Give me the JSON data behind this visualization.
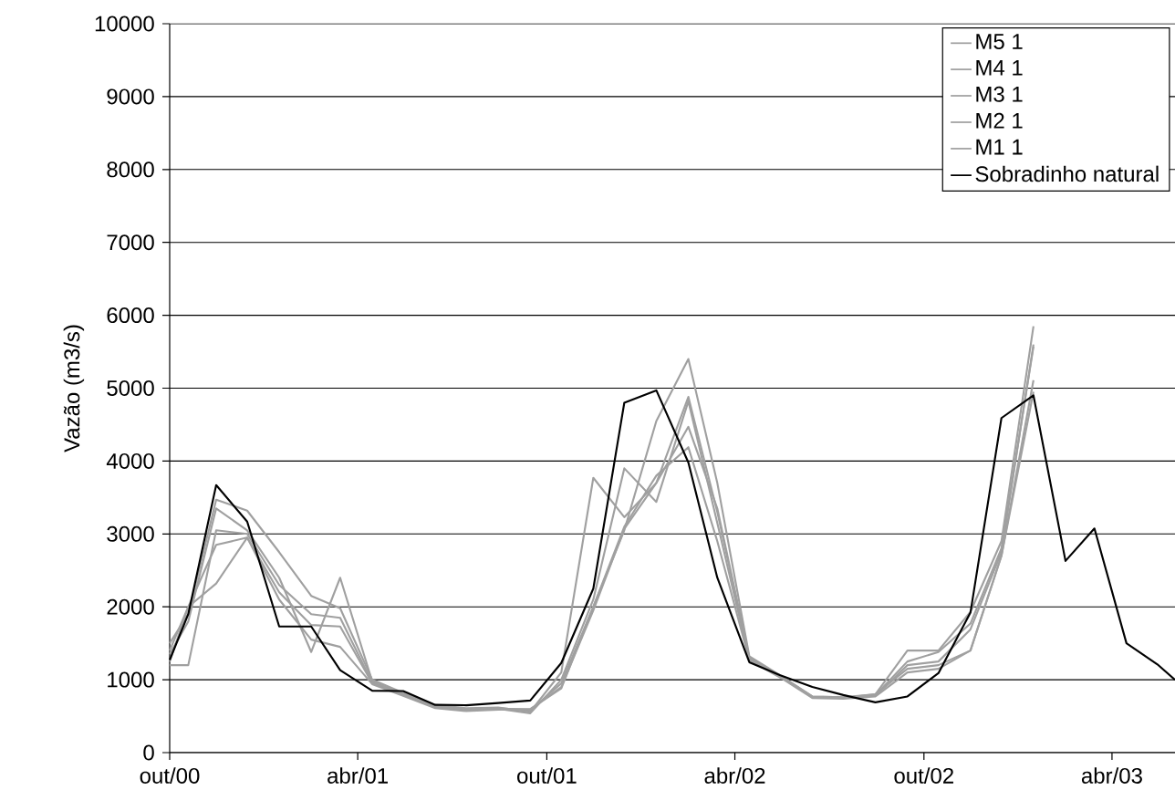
{
  "chart_data": {
    "type": "line",
    "ylabel": "Vazão (m3/s)",
    "x": [
      "2000-10-01",
      "2000-10-19",
      "2000-11-15",
      "2000-12-15",
      "2001-01-15",
      "2001-02-15",
      "2001-03-15",
      "2001-04-15",
      "2001-05-15",
      "2001-06-15",
      "2001-07-15",
      "2001-08-15",
      "2001-09-15",
      "2001-10-15",
      "2001-11-15",
      "2001-12-15",
      "2002-01-15",
      "2002-02-15",
      "2002-03-15",
      "2002-04-15",
      "2002-05-15",
      "2002-06-15",
      "2002-07-15",
      "2002-08-15",
      "2002-09-15",
      "2002-10-15",
      "2002-11-15",
      "2002-12-15",
      "2003-01-15",
      "2003-02-15",
      "2003-03-15",
      "2003-04-15",
      "2003-05-15",
      "2003-06-01"
    ],
    "xlim": [
      "2000-10-01",
      "2003-06-01"
    ],
    "xticks": [
      {
        "value": "2000-10-01",
        "label": "out/00"
      },
      {
        "value": "2001-04-01",
        "label": "abr/01"
      },
      {
        "value": "2001-10-01",
        "label": "out/01"
      },
      {
        "value": "2002-04-01",
        "label": "abr/02"
      },
      {
        "value": "2002-10-01",
        "label": "out/02"
      },
      {
        "value": "2003-04-01",
        "label": "abr/03"
      }
    ],
    "ylim": [
      0,
      10000
    ],
    "yticks": [
      0,
      1000,
      2000,
      3000,
      4000,
      5000,
      6000,
      7000,
      8000,
      9000,
      10000
    ],
    "grid": "y",
    "legend": "top right",
    "marker": "none",
    "line_style": "solid",
    "series": [
      {
        "name": "M5 1",
        "color": "#a0a0a0",
        "values": [
          1500,
          1900,
          3470,
          3320,
          2750,
          2150,
          1980,
          1000,
          820,
          650,
          610,
          620,
          560,
          1100,
          3770,
          3230,
          3700,
          4880,
          3300,
          1300,
          1050,
          770,
          760,
          800,
          1400,
          1400,
          1930,
          2900,
          5850,
          null,
          null,
          null,
          null,
          null
        ]
      },
      {
        "name": "M4 1",
        "color": "#a0a0a0",
        "values": [
          1350,
          1800,
          3350,
          3050,
          2400,
          1380,
          2400,
          980,
          800,
          640,
          600,
          600,
          540,
          1000,
          2100,
          3900,
          3440,
          4820,
          3150,
          1280,
          1040,
          760,
          750,
          790,
          1250,
          1380,
          1770,
          2800,
          5570,
          null,
          null,
          null,
          null,
          null
        ]
      },
      {
        "name": "M3 1",
        "color": "#a0a0a0",
        "values": [
          1200,
          1200,
          3050,
          3000,
          2300,
          1900,
          1850,
          960,
          790,
          630,
          590,
          610,
          580,
          950,
          2000,
          3050,
          4550,
          5400,
          3700,
          1320,
          1060,
          770,
          760,
          780,
          1200,
          1250,
          1690,
          2750,
          5600,
          null,
          null,
          null,
          null,
          null
        ]
      },
      {
        "name": "M2 1",
        "color": "#a0a0a0",
        "values": [
          1250,
          2000,
          2850,
          2950,
          2200,
          1750,
          1730,
          950,
          790,
          620,
          580,
          600,
          590,
          900,
          1950,
          3070,
          3700,
          4470,
          3350,
          1300,
          1050,
          760,
          750,
          800,
          1150,
          1200,
          1400,
          2700,
          5110,
          null,
          null,
          null,
          null,
          null
        ]
      },
      {
        "name": "M1 1",
        "color": "#a0a0a0",
        "values": [
          1400,
          2000,
          2320,
          2950,
          2100,
          1550,
          1450,
          940,
          780,
          610,
          570,
          590,
          600,
          880,
          2000,
          3100,
          3800,
          4190,
          2900,
          1270,
          1030,
          750,
          740,
          770,
          1100,
          1150,
          1400,
          2700,
          4950,
          null,
          null,
          null,
          null,
          null
        ]
      },
      {
        "name": "Sobradinho natural",
        "color": "#000000",
        "values": [
          1270,
          1900,
          3670,
          3170,
          1730,
          1730,
          1130,
          850,
          845,
          655,
          650,
          680,
          715,
          1230,
          2250,
          4800,
          4970,
          3980,
          2400,
          1240,
          1060,
          900,
          790,
          690,
          770,
          1090,
          1920,
          4590,
          4900,
          2630,
          3075,
          1500,
          1210,
          1000
        ]
      }
    ]
  }
}
